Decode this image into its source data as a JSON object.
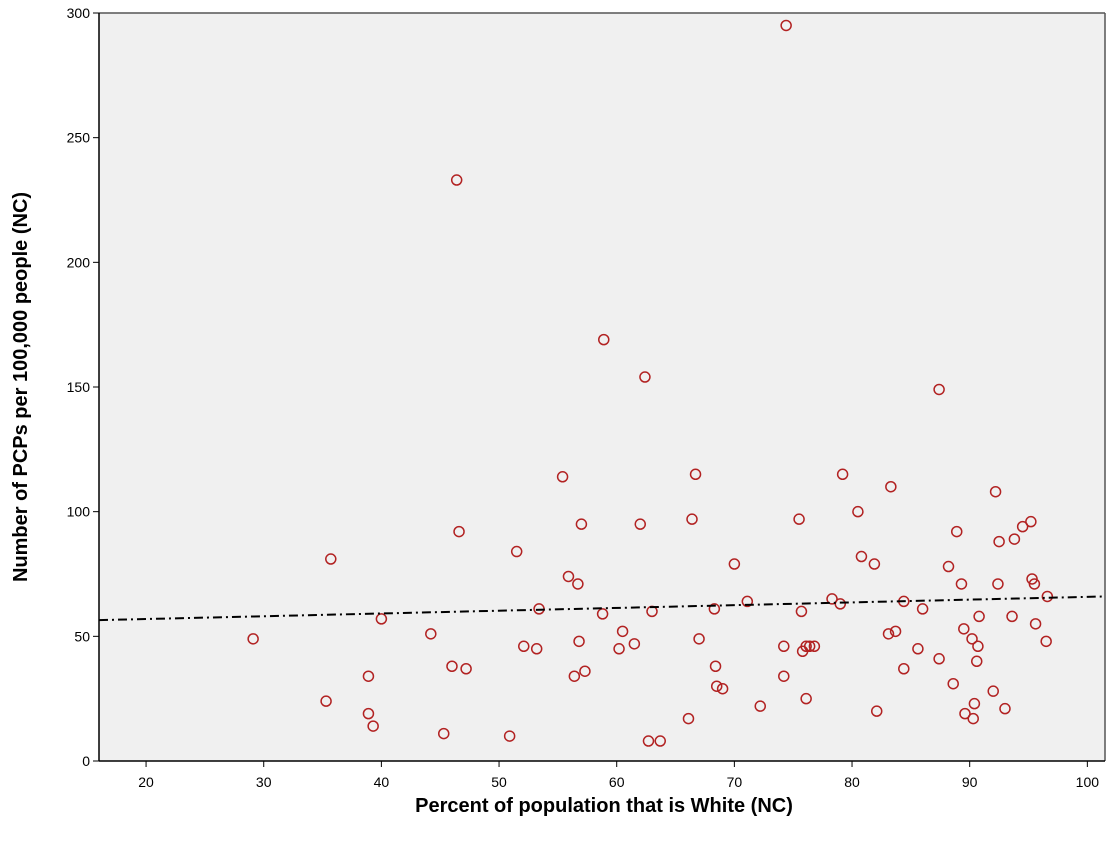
{
  "chart_data": {
    "type": "scatter",
    "title": "",
    "xlabel": "Percent of population that is White (NC)",
    "ylabel": "Number of PCPs per 100,000 people (NC)",
    "xlim": [
      16,
      101.5
    ],
    "ylim": [
      0,
      300
    ],
    "xticks": [
      20,
      30,
      40,
      50,
      60,
      70,
      80,
      90,
      100
    ],
    "yticks": [
      0,
      50,
      100,
      150,
      200,
      250,
      300
    ],
    "grid": false,
    "legend": "none",
    "colors": {
      "background": "#f0f0f0",
      "marker": "#b22222",
      "fit_line": "#000000"
    },
    "fit_line": {
      "style": "dash-dot",
      "x": [
        16,
        101.5
      ],
      "y": [
        56.5,
        66
      ]
    },
    "points": [
      [
        29.1,
        49
      ],
      [
        35.3,
        24
      ],
      [
        35.7,
        81
      ],
      [
        38.9,
        34
      ],
      [
        38.9,
        19
      ],
      [
        39.3,
        14
      ],
      [
        40.0,
        57
      ],
      [
        44.2,
        51
      ],
      [
        45.3,
        11
      ],
      [
        46.0,
        38
      ],
      [
        46.4,
        233
      ],
      [
        46.6,
        92
      ],
      [
        47.2,
        37
      ],
      [
        50.9,
        10
      ],
      [
        51.5,
        84
      ],
      [
        52.1,
        46
      ],
      [
        53.2,
        45
      ],
      [
        53.4,
        61
      ],
      [
        55.4,
        114
      ],
      [
        55.9,
        74
      ],
      [
        56.4,
        34
      ],
      [
        56.7,
        71
      ],
      [
        56.8,
        48
      ],
      [
        57.0,
        95
      ],
      [
        57.3,
        36
      ],
      [
        58.8,
        59
      ],
      [
        58.9,
        169
      ],
      [
        60.2,
        45
      ],
      [
        60.5,
        52
      ],
      [
        61.5,
        47
      ],
      [
        62.0,
        95
      ],
      [
        62.4,
        154
      ],
      [
        62.7,
        8
      ],
      [
        63.0,
        60
      ],
      [
        63.7,
        8
      ],
      [
        66.1,
        17
      ],
      [
        66.4,
        97
      ],
      [
        66.7,
        115
      ],
      [
        67.0,
        49
      ],
      [
        68.3,
        61
      ],
      [
        68.4,
        38
      ],
      [
        68.5,
        30
      ],
      [
        69.0,
        29
      ],
      [
        70.0,
        79
      ],
      [
        71.1,
        64
      ],
      [
        72.2,
        22
      ],
      [
        74.2,
        34
      ],
      [
        74.2,
        46
      ],
      [
        74.4,
        295
      ],
      [
        75.5,
        97
      ],
      [
        75.7,
        60
      ],
      [
        75.8,
        44
      ],
      [
        76.1,
        25
      ],
      [
        76.1,
        46
      ],
      [
        76.4,
        46
      ],
      [
        76.8,
        46
      ],
      [
        78.3,
        65
      ],
      [
        79.0,
        63
      ],
      [
        79.2,
        115
      ],
      [
        80.5,
        100
      ],
      [
        80.8,
        82
      ],
      [
        81.9,
        79
      ],
      [
        82.1,
        20
      ],
      [
        83.1,
        51
      ],
      [
        83.3,
        110
      ],
      [
        83.7,
        52
      ],
      [
        84.4,
        64
      ],
      [
        84.4,
        37
      ],
      [
        85.6,
        45
      ],
      [
        86.0,
        61
      ],
      [
        87.4,
        149
      ],
      [
        87.4,
        41
      ],
      [
        88.2,
        78
      ],
      [
        88.6,
        31
      ],
      [
        88.9,
        92
      ],
      [
        89.3,
        71
      ],
      [
        89.5,
        53
      ],
      [
        89.6,
        19
      ],
      [
        90.2,
        49
      ],
      [
        90.3,
        17
      ],
      [
        90.4,
        23
      ],
      [
        90.6,
        40
      ],
      [
        90.7,
        46
      ],
      [
        90.8,
        58
      ],
      [
        92.0,
        28
      ],
      [
        92.2,
        108
      ],
      [
        92.4,
        71
      ],
      [
        92.5,
        88
      ],
      [
        93.0,
        21
      ],
      [
        93.6,
        58
      ],
      [
        93.8,
        89
      ],
      [
        94.5,
        94
      ],
      [
        95.2,
        96
      ],
      [
        95.3,
        73
      ],
      [
        95.5,
        71
      ],
      [
        95.6,
        55
      ],
      [
        96.5,
        48
      ],
      [
        96.6,
        66
      ]
    ]
  }
}
